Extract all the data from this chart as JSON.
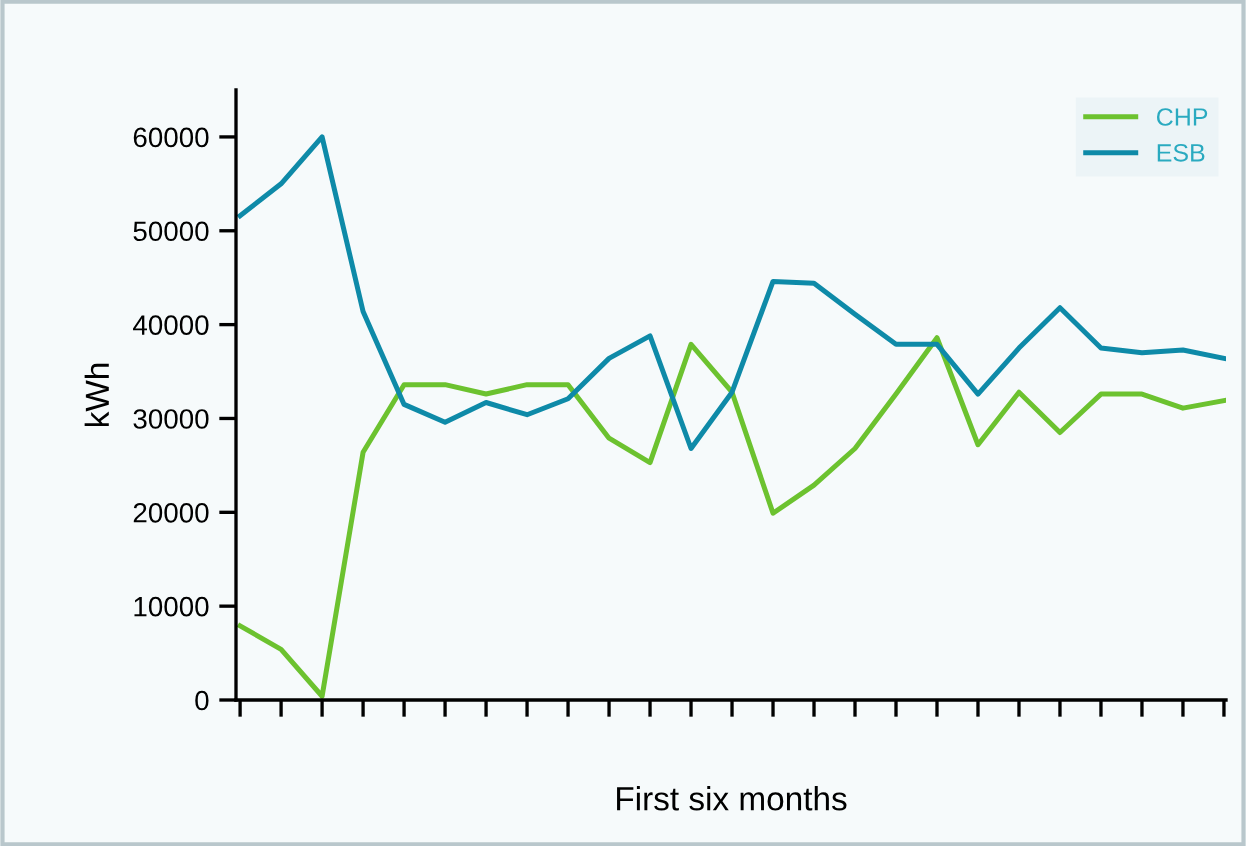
{
  "chart_data": {
    "type": "line",
    "xlabel": "First six months",
    "ylabel": "kWh",
    "categories": [
      null,
      null,
      null,
      null,
      null,
      null,
      null,
      null,
      null,
      null,
      null,
      null,
      null,
      null,
      null,
      null,
      null,
      null,
      null,
      null,
      null,
      null,
      null,
      null,
      null
    ],
    "series": [
      {
        "name": "CHP",
        "color": "#6cc22f",
        "values": [
          7900,
          5400,
          400,
          26400,
          33600,
          33600,
          32600,
          33600,
          33600,
          27900,
          25300,
          37900,
          32800,
          19900,
          22900,
          26800,
          32600,
          38600,
          27200,
          32800,
          28500,
          32600,
          32600,
          31100,
          31900
        ]
      },
      {
        "name": "ESB",
        "color": "#0e8aa8",
        "values": [
          51600,
          55000,
          60000,
          41400,
          31500,
          29600,
          31700,
          30400,
          32100,
          36400,
          38800,
          26800,
          32800,
          44600,
          44400,
          41100,
          37900,
          37900,
          32600,
          37500,
          41800,
          37500,
          37000,
          37300,
          36400
        ]
      }
    ],
    "ylim": [
      0,
      65000
    ],
    "yticks": [
      0,
      10000,
      20000,
      30000,
      40000,
      50000,
      60000
    ],
    "grid": false,
    "legend": "top right",
    "tick_labels": "y",
    "line_style": "solid",
    "marker": "none"
  }
}
